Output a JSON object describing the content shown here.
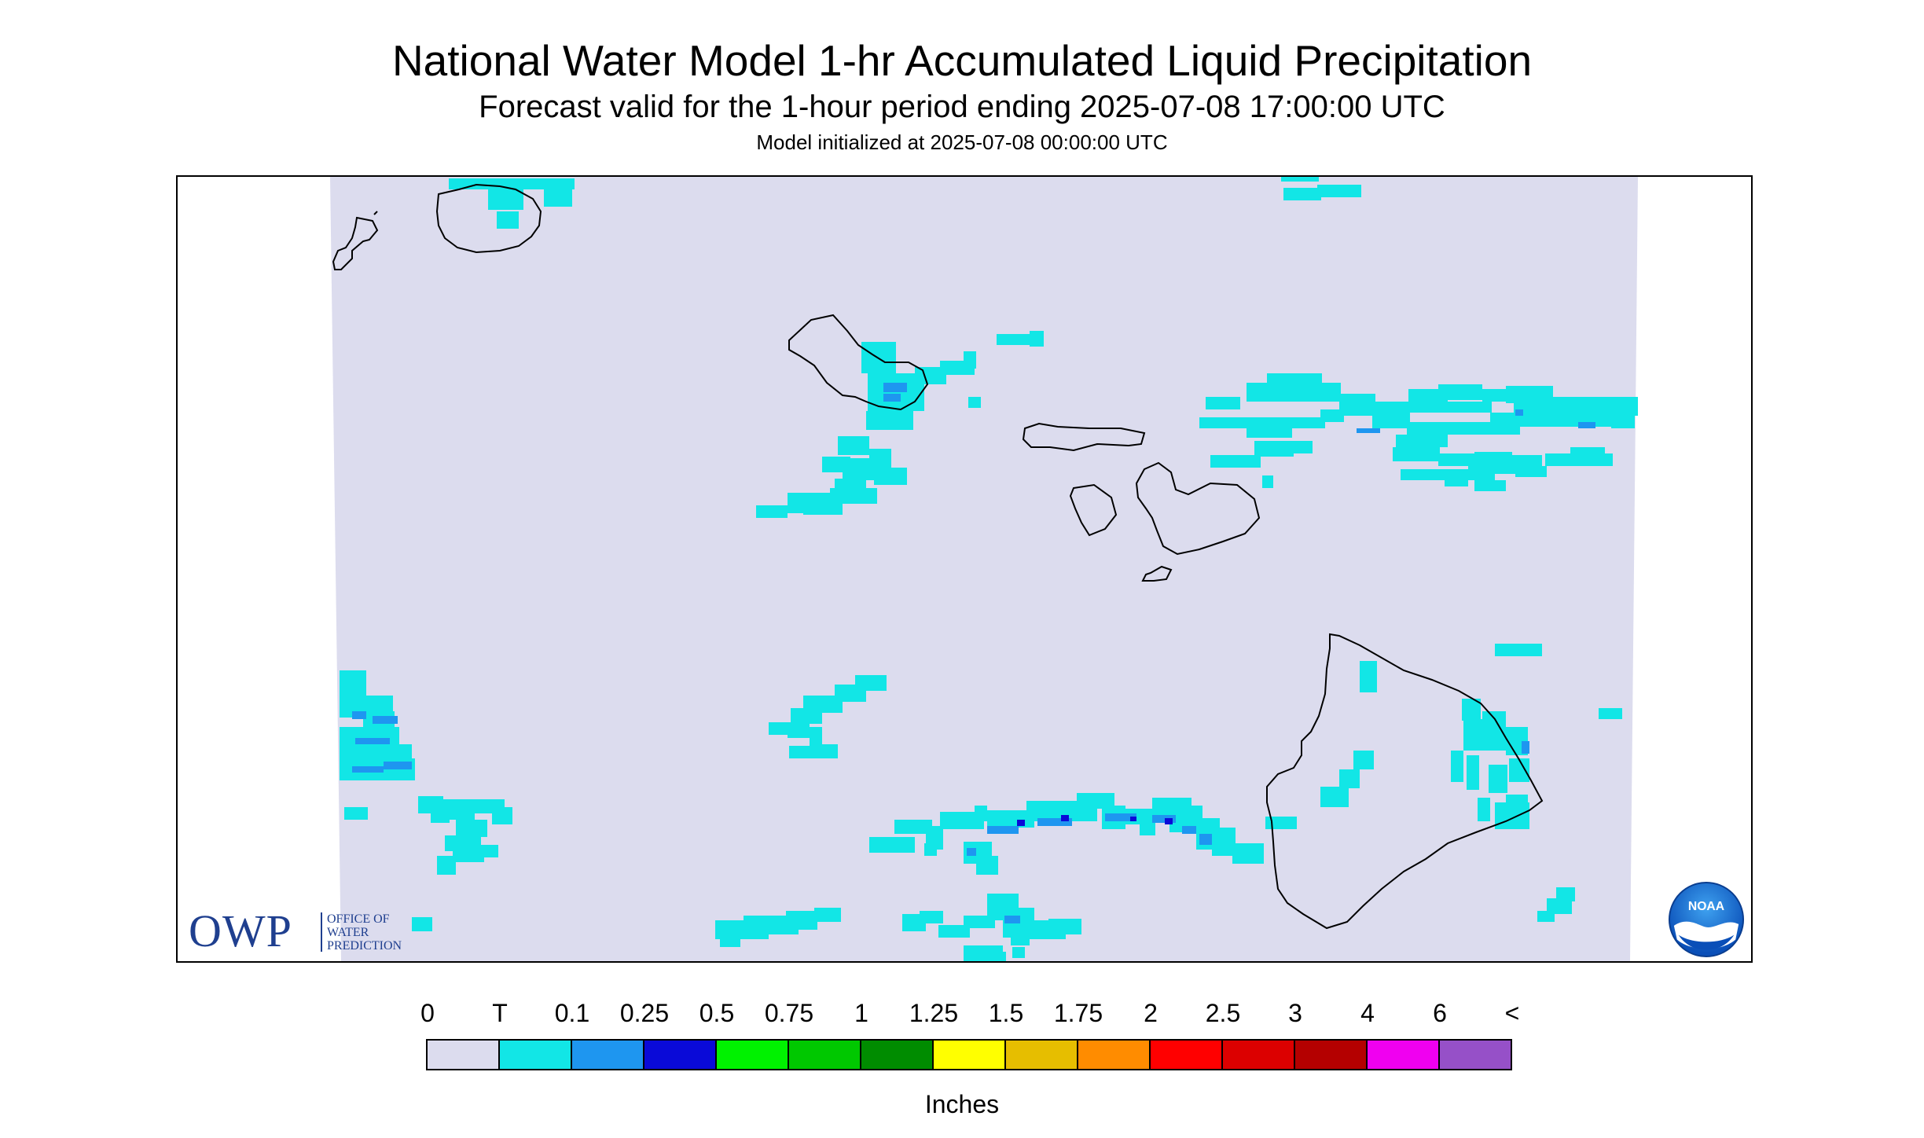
{
  "title": "National Water Model 1-hr Accumulated Liquid Precipitation",
  "subtitle": "Forecast valid for the 1-hour period ending 2025-07-08 17:00:00 UTC",
  "init_text": "Model initialized at 2025-07-08 00:00:00 UTC",
  "units_label": "Inches",
  "owp_logo": {
    "letters": "OWP",
    "line1": "OFFICE OF",
    "line2": "WATER",
    "line3": "PREDICTION",
    "color": "#1f3f8f"
  },
  "noaa_logo": {
    "text": "NOAA",
    "icon": "noaa-seal-icon"
  },
  "colors": {
    "background": "#dcdcee",
    "trace": "#12e6e6",
    "light_blue": "#1e96f0",
    "blue": "#0a0ad8",
    "coast": "#000000"
  },
  "legend": {
    "ticks": [
      "0",
      "T",
      "0.1",
      "0.25",
      "0.5",
      "0.75",
      "1",
      "1.25",
      "1.5",
      "1.75",
      "2",
      "2.5",
      "3",
      "4",
      "6",
      "<"
    ],
    "colors": [
      "#dcdcee",
      "#12e6e6",
      "#1e96f0",
      "#0a0ad8",
      "#00f200",
      "#00c800",
      "#008c00",
      "#ffff00",
      "#e6be00",
      "#ff8c00",
      "#ff0000",
      "#dc0000",
      "#b40000",
      "#f000f0",
      "#9650c8"
    ]
  }
}
